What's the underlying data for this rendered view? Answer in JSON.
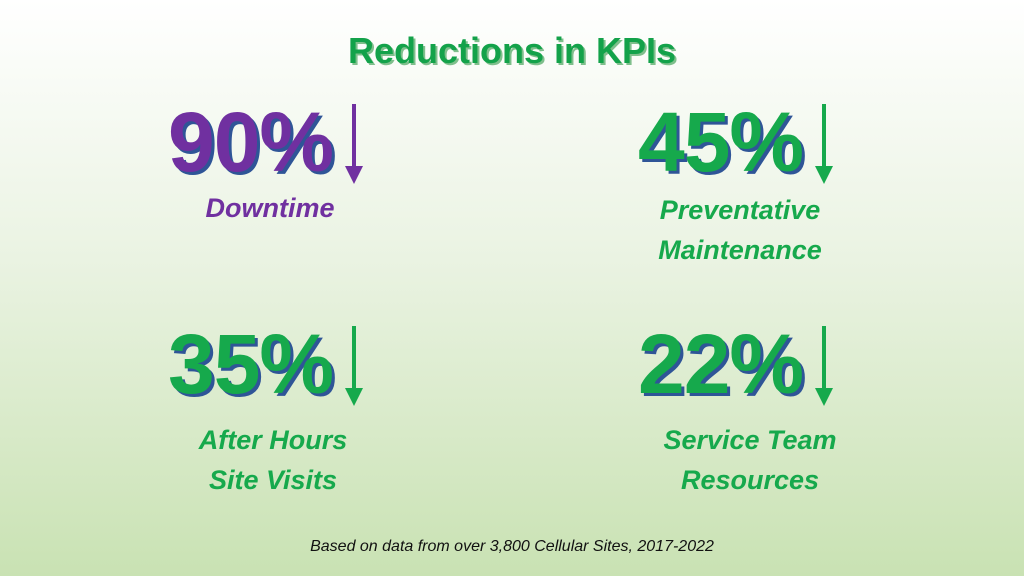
{
  "title": "Reductions in KPIs",
  "kpis": [
    {
      "value": "90%",
      "label_lines": [
        "Downtime"
      ],
      "direction": "down",
      "color": "#7030a0",
      "icon": "arrow-down-icon"
    },
    {
      "value": "45%",
      "label_lines": [
        "Preventative",
        "Maintenance"
      ],
      "direction": "down",
      "color": "#16a94c",
      "icon": "arrow-down-icon"
    },
    {
      "value": "35%",
      "label_lines": [
        "After Hours",
        "Site Visits"
      ],
      "direction": "down",
      "color": "#16a94c",
      "icon": "arrow-down-icon"
    },
    {
      "value": "22%",
      "label_lines": [
        "Service Team",
        "Resources"
      ],
      "direction": "down",
      "color": "#16a94c",
      "icon": "arrow-down-icon"
    }
  ],
  "footnote": "Based on data from over 3,800 Cellular Sites, 2017-2022",
  "colors": {
    "accent_green": "#16a94c",
    "accent_purple": "#7030a0",
    "shadow_blue": "#2f5597"
  }
}
